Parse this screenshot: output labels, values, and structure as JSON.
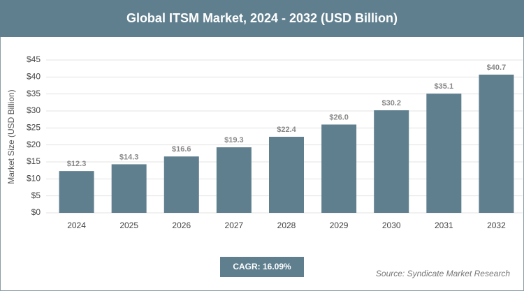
{
  "chart_data": {
    "type": "bar",
    "title": "Global ITSM Market, 2024 - 2032 (USD Billion)",
    "y_label": "Market Size (USD Billion)",
    "categories": [
      "2024",
      "2025",
      "2026",
      "2027",
      "2028",
      "2029",
      "2030",
      "2031",
      "2032"
    ],
    "values": [
      12.3,
      14.3,
      16.6,
      19.3,
      22.4,
      26.0,
      30.2,
      35.1,
      40.7
    ],
    "value_labels": [
      "$12.3",
      "$14.3",
      "$16.6",
      "$19.3",
      "$22.4",
      "$26.0",
      "$30.2",
      "$35.1",
      "$40.7"
    ],
    "color": "#5f7f8f",
    "ylim": [
      0,
      45
    ],
    "yticks": [
      {
        "value": 0,
        "label": "$0"
      },
      {
        "value": 5,
        "label": "$5"
      },
      {
        "value": 10,
        "label": "$10"
      },
      {
        "value": 15,
        "label": "$15"
      },
      {
        "value": 20,
        "label": "$20"
      },
      {
        "value": 25,
        "label": "$25"
      },
      {
        "value": 30,
        "label": "$30"
      },
      {
        "value": 35,
        "label": "$35"
      },
      {
        "value": 40,
        "label": "$40"
      },
      {
        "value": 45,
        "label": "$45"
      }
    ],
    "grid": true,
    "cagr": "CAGR: 16.09%",
    "source": "Source: Syndicate Market Research"
  }
}
